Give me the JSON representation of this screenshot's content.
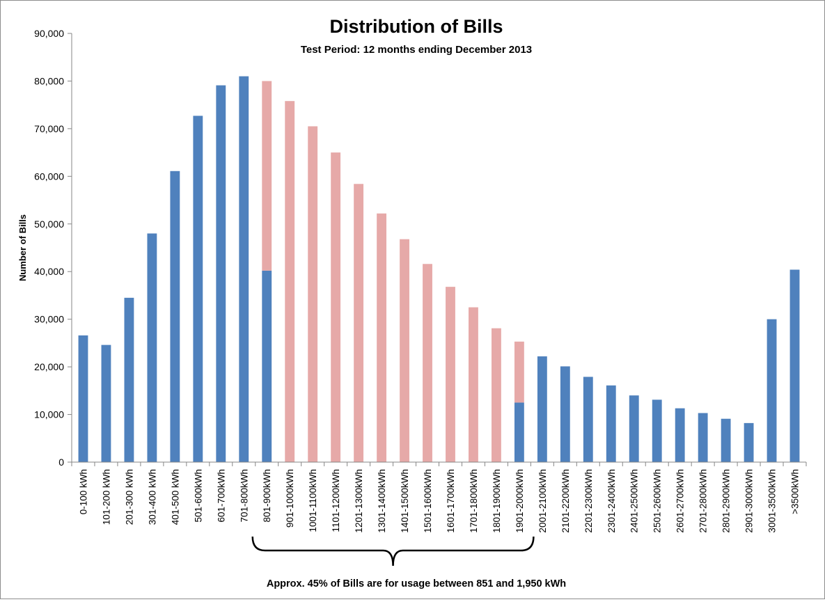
{
  "chart_data": {
    "type": "bar",
    "title": "Distribution of Bills",
    "subtitle": "Test Period: 12 months ending December 2013",
    "xlabel": "",
    "ylabel": "Number of Bills",
    "ylim": [
      0,
      90000
    ],
    "yticks": [
      0,
      10000,
      20000,
      30000,
      40000,
      50000,
      60000,
      70000,
      80000,
      90000
    ],
    "ytick_labels": [
      "0",
      "10,000",
      "20,000",
      "30,000",
      "40,000",
      "50,000",
      "60,000",
      "70,000",
      "80,000",
      "90,000"
    ],
    "grid": false,
    "stacked": true,
    "categories": [
      "0-100 kWh",
      "101-200 kWh",
      "201-300 kWh",
      "301-400 kWh",
      "401-500 kWh",
      "501-600kWh",
      "601-700kWh",
      "701-800kWh",
      "801-900kWh",
      "901-1000kWh",
      "1001-1100kWh",
      "1101-1200kWh",
      "1201-1300kWh",
      "1301-1400kWh",
      "1401-1500kWh",
      "1501-1600kWh",
      "1601-1700kWh",
      "1701-1800kWh",
      "1801-1900kWh",
      "1901-2000kWh",
      "2001-2100kWh",
      "2101-2200kWh",
      "2201-2300kWh",
      "2301-2400kWh",
      "2401-2500kWh",
      "2501-2600kWh",
      "2601-2700kWh",
      "2701-2800kWh",
      "2801-2900kWh",
      "2901-3000kWh",
      "3001-3500kWh",
      ">3500kWh"
    ],
    "series": [
      {
        "color": "#4f81bd",
        "values": [
          26600,
          24600,
          34500,
          48000,
          61100,
          72700,
          79100,
          81000,
          40200,
          0,
          0,
          0,
          0,
          0,
          0,
          0,
          0,
          0,
          0,
          12500,
          22200,
          20100,
          17900,
          16100,
          14000,
          13100,
          11300,
          10300,
          9100,
          8200,
          30000,
          40400
        ]
      },
      {
        "color": "#e6a9a8",
        "values": [
          0,
          0,
          0,
          0,
          0,
          0,
          0,
          0,
          39800,
          75800,
          70500,
          65000,
          58400,
          52200,
          46800,
          41600,
          36800,
          32500,
          28100,
          12800,
          0,
          0,
          0,
          0,
          0,
          0,
          0,
          0,
          0,
          0,
          0,
          0
        ]
      }
    ],
    "annotation": {
      "text": "Approx. 45% of Bills are for usage between 851 and 1,950 kWh",
      "bracket_from": "801-900kWh",
      "bracket_to": "1901-2000kWh"
    }
  }
}
